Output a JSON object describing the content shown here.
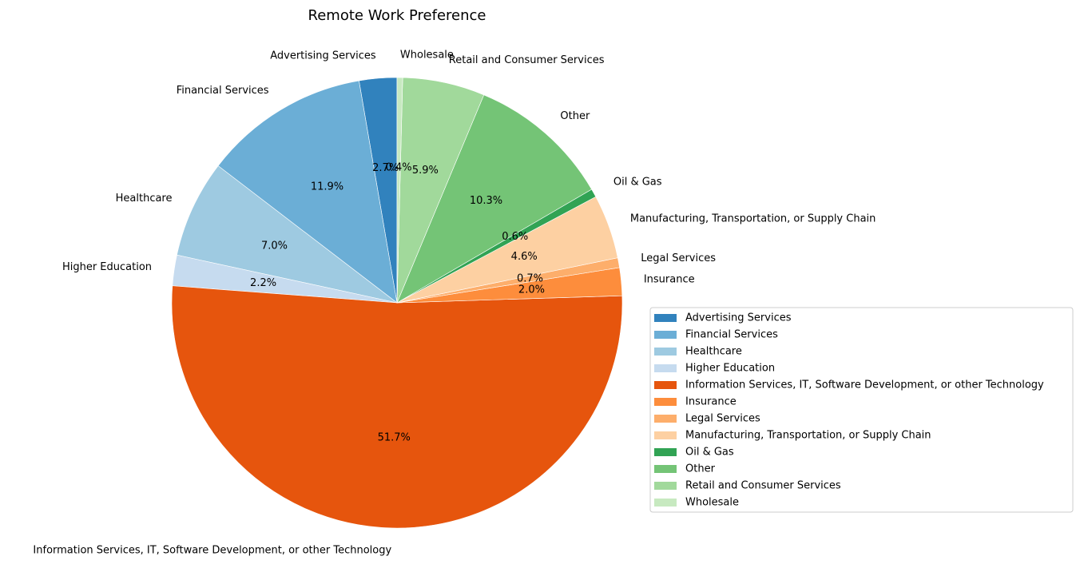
{
  "chart_data": {
    "type": "pie",
    "title": "Remote Work Preference",
    "slices": [
      {
        "label": "Advertising Services",
        "value": 2.7,
        "pct_label": "2.7%",
        "color": "#3182bd"
      },
      {
        "label": "Financial Services",
        "value": 11.9,
        "pct_label": "11.9%",
        "color": "#6baed6"
      },
      {
        "label": "Healthcare",
        "value": 7.0,
        "pct_label": "7.0%",
        "color": "#9ecae1"
      },
      {
        "label": "Higher Education",
        "value": 2.2,
        "pct_label": "2.2%",
        "color": "#c6dbef"
      },
      {
        "label": "Information Services, IT, Software Development, or other Technology",
        "value": 51.7,
        "pct_label": "51.7%",
        "color": "#e6550d"
      },
      {
        "label": "Insurance",
        "value": 2.0,
        "pct_label": "2.0%",
        "color": "#fd8d3c"
      },
      {
        "label": "Legal Services",
        "value": 0.7,
        "pct_label": "0.7%",
        "color": "#fdae6b"
      },
      {
        "label": "Manufacturing, Transportation, or Supply Chain",
        "value": 4.6,
        "pct_label": "4.6%",
        "color": "#fdd0a2"
      },
      {
        "label": "Oil & Gas",
        "value": 0.6,
        "pct_label": "0.6%",
        "color": "#31a354"
      },
      {
        "label": "Other",
        "value": 10.3,
        "pct_label": "10.3%",
        "color": "#74c476"
      },
      {
        "label": "Retail and Consumer Services",
        "value": 5.9,
        "pct_label": "5.9%",
        "color": "#a1d99b"
      },
      {
        "label": "Wholesale",
        "value": 0.4,
        "pct_label": "0.4%",
        "color": "#c7e9c0"
      }
    ],
    "start_angle_deg": 90,
    "direction": "counterclockwise",
    "legend_position": "center-right"
  }
}
